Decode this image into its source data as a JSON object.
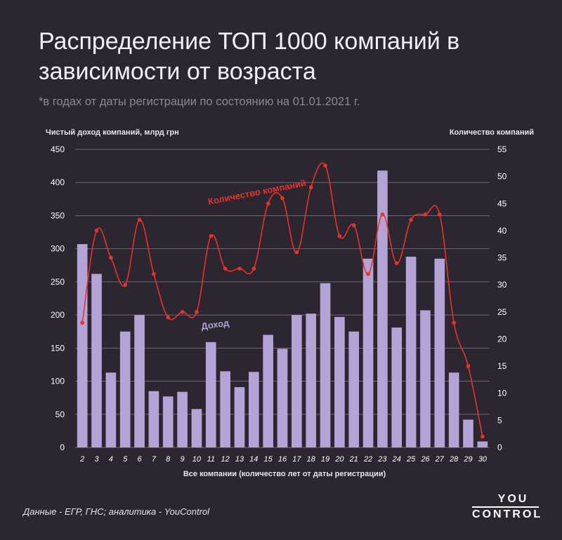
{
  "title": "Распределение ТОП 1000 компаний в зависимости от возраста",
  "subtitle": "*в годах от даты регистрации по состоянию на 01.01.2021 г.",
  "source": "Данные - ЕГР, ГНС; аналитика - YouControl",
  "logo": {
    "line1": "YOU",
    "line2": "CONTROL"
  },
  "colors": {
    "background": "#2b2630",
    "bars": "#b3a3d6",
    "line": "#e8332b",
    "grid": "#6e6875"
  },
  "chart_data": {
    "type": "bar",
    "xlabel": "Все компании (количество лет от даты регистрации)",
    "ylabel": "Чистый доход компаний, млрд грн",
    "y2label": "Количество компаний",
    "ylim": [
      0,
      450
    ],
    "y2lim": [
      0,
      55
    ],
    "yticks": [
      "0",
      "50",
      "100",
      "150",
      "200",
      "250",
      "300",
      "350",
      "400",
      "450"
    ],
    "y2ticks": [
      "0",
      "5",
      "10",
      "15",
      "20",
      "25",
      "30",
      "35",
      "40",
      "45",
      "50",
      "55"
    ],
    "grid": true,
    "categories": [
      "2",
      "3",
      "4",
      "5",
      "6",
      "7",
      "8",
      "9",
      "10",
      "11",
      "12",
      "13",
      "14",
      "15",
      "16",
      "17",
      "18",
      "19",
      "20",
      "21",
      "22",
      "23",
      "24",
      "25",
      "26",
      "27",
      "28",
      "29",
      "30"
    ],
    "series": [
      {
        "name": "Доход",
        "type": "bar",
        "axis": "left",
        "values": [
          307,
          262,
          113,
          175,
          200,
          85,
          77,
          84,
          58,
          159,
          115,
          91,
          114,
          170,
          149,
          200,
          202,
          248,
          197,
          175,
          285,
          418,
          181,
          288,
          207,
          285,
          113,
          42,
          9
        ]
      },
      {
        "name": "Количество компаний",
        "type": "line",
        "axis": "right",
        "values": [
          23,
          40,
          35,
          30,
          42,
          32,
          24,
          25,
          25,
          39,
          33,
          33,
          33,
          45,
          46,
          36,
          48,
          52,
          39,
          41,
          32,
          43,
          34,
          42,
          43,
          43,
          23,
          15,
          2
        ]
      }
    ]
  }
}
